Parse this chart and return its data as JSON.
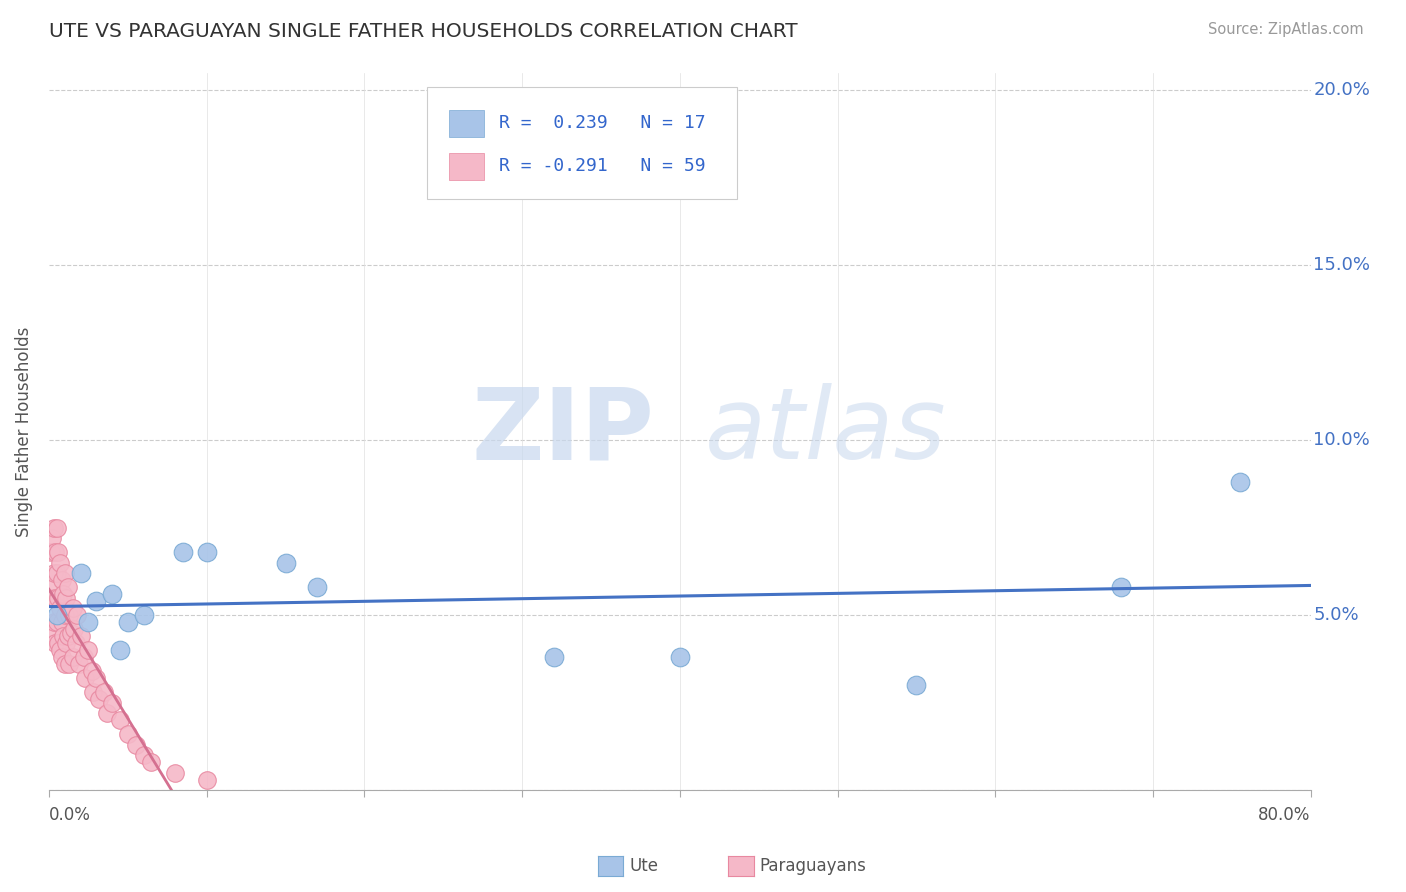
{
  "title": "UTE VS PARAGUAYAN SINGLE FATHER HOUSEHOLDS CORRELATION CHART",
  "source": "Source: ZipAtlas.com",
  "ylabel": "Single Father Households",
  "xlim": [
    0,
    0.8
  ],
  "ylim": [
    0,
    0.205
  ],
  "yticks": [
    0.0,
    0.05,
    0.1,
    0.15,
    0.2
  ],
  "ytick_labels": [
    "",
    "5.0%",
    "10.0%",
    "15.0%",
    "20.0%"
  ],
  "ute_color": "#a8c4e8",
  "ute_edge_color": "#7aaad4",
  "paraguayan_color": "#f5b8c8",
  "paraguayan_edge_color": "#e888a0",
  "trendline_ute_color": "#4472c4",
  "trendline_paraguayan_color": "#d47090",
  "ytick_color": "#4472c4",
  "legend_R_ute": "0.239",
  "legend_N_ute": "17",
  "legend_R_paraguayan": "-0.291",
  "legend_N_paraguayan": "59",
  "watermark_zip": "ZIP",
  "watermark_atlas": "atlas",
  "ute_x": [
    0.005,
    0.02,
    0.025,
    0.03,
    0.04,
    0.045,
    0.05,
    0.06,
    0.085,
    0.1,
    0.15,
    0.17,
    0.32,
    0.4,
    0.55,
    0.68,
    0.755
  ],
  "ute_y": [
    0.05,
    0.062,
    0.048,
    0.054,
    0.056,
    0.04,
    0.048,
    0.05,
    0.068,
    0.068,
    0.065,
    0.058,
    0.038,
    0.038,
    0.03,
    0.058,
    0.088
  ],
  "paraguayan_x": [
    0.001,
    0.001,
    0.002,
    0.002,
    0.002,
    0.003,
    0.003,
    0.003,
    0.004,
    0.004,
    0.004,
    0.005,
    0.005,
    0.005,
    0.006,
    0.006,
    0.006,
    0.007,
    0.007,
    0.007,
    0.008,
    0.008,
    0.008,
    0.009,
    0.009,
    0.01,
    0.01,
    0.01,
    0.011,
    0.011,
    0.012,
    0.012,
    0.013,
    0.013,
    0.014,
    0.015,
    0.015,
    0.016,
    0.017,
    0.018,
    0.019,
    0.02,
    0.022,
    0.023,
    0.025,
    0.027,
    0.028,
    0.03,
    0.032,
    0.035,
    0.037,
    0.04,
    0.045,
    0.05,
    0.055,
    0.06,
    0.065,
    0.08,
    0.1
  ],
  "paraguayan_y": [
    0.068,
    0.055,
    0.072,
    0.058,
    0.045,
    0.075,
    0.062,
    0.048,
    0.068,
    0.055,
    0.042,
    0.075,
    0.062,
    0.048,
    0.068,
    0.055,
    0.042,
    0.065,
    0.052,
    0.04,
    0.06,
    0.048,
    0.038,
    0.056,
    0.044,
    0.062,
    0.05,
    0.036,
    0.055,
    0.042,
    0.058,
    0.044,
    0.05,
    0.036,
    0.045,
    0.052,
    0.038,
    0.046,
    0.042,
    0.05,
    0.036,
    0.044,
    0.038,
    0.032,
    0.04,
    0.034,
    0.028,
    0.032,
    0.026,
    0.028,
    0.022,
    0.025,
    0.02,
    0.016,
    0.013,
    0.01,
    0.008,
    0.005,
    0.003
  ]
}
